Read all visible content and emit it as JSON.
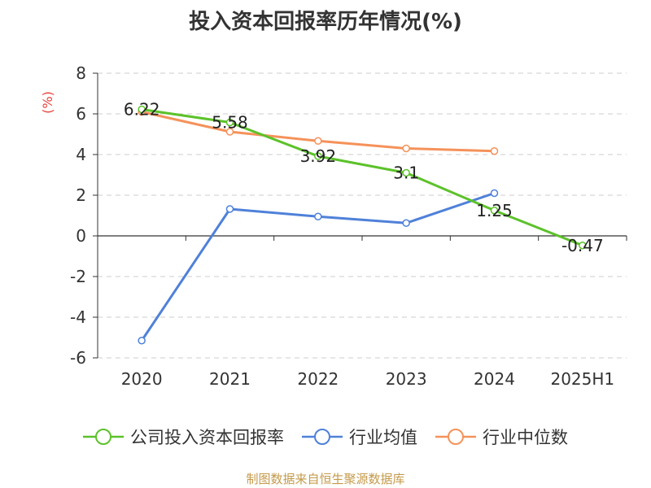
{
  "chart_data": {
    "type": "line",
    "title": "投入资本回报率历年情况(%)",
    "ylabel": "(%)",
    "categories": [
      "2020",
      "2021",
      "2022",
      "2023",
      "2024",
      "2025H1"
    ],
    "ylim": [
      -6,
      8
    ],
    "yticks": [
      "8",
      "6",
      "4",
      "2",
      "0",
      "-2",
      "-4",
      "-6"
    ],
    "grid": true,
    "legend_position": "bottom",
    "series": [
      {
        "name": "公司投入资本回报率",
        "color": "#5cc22a",
        "values": [
          6.22,
          5.58,
          3.92,
          3.1,
          1.25,
          -0.47
        ],
        "labels": [
          "6.22",
          "5.58",
          "3.92",
          "3.1",
          "1.25",
          "-0.47"
        ]
      },
      {
        "name": "行业均值",
        "color": "#4f81d9",
        "values": [
          -5.15,
          1.32,
          0.95,
          0.63,
          2.1,
          null
        ]
      },
      {
        "name": "行业中位数",
        "color": "#f5925a",
        "values": [
          6.1,
          5.12,
          4.67,
          4.3,
          4.17,
          null
        ]
      }
    ]
  },
  "footer": {
    "source": "制图数据来自恒生聚源数据库"
  }
}
